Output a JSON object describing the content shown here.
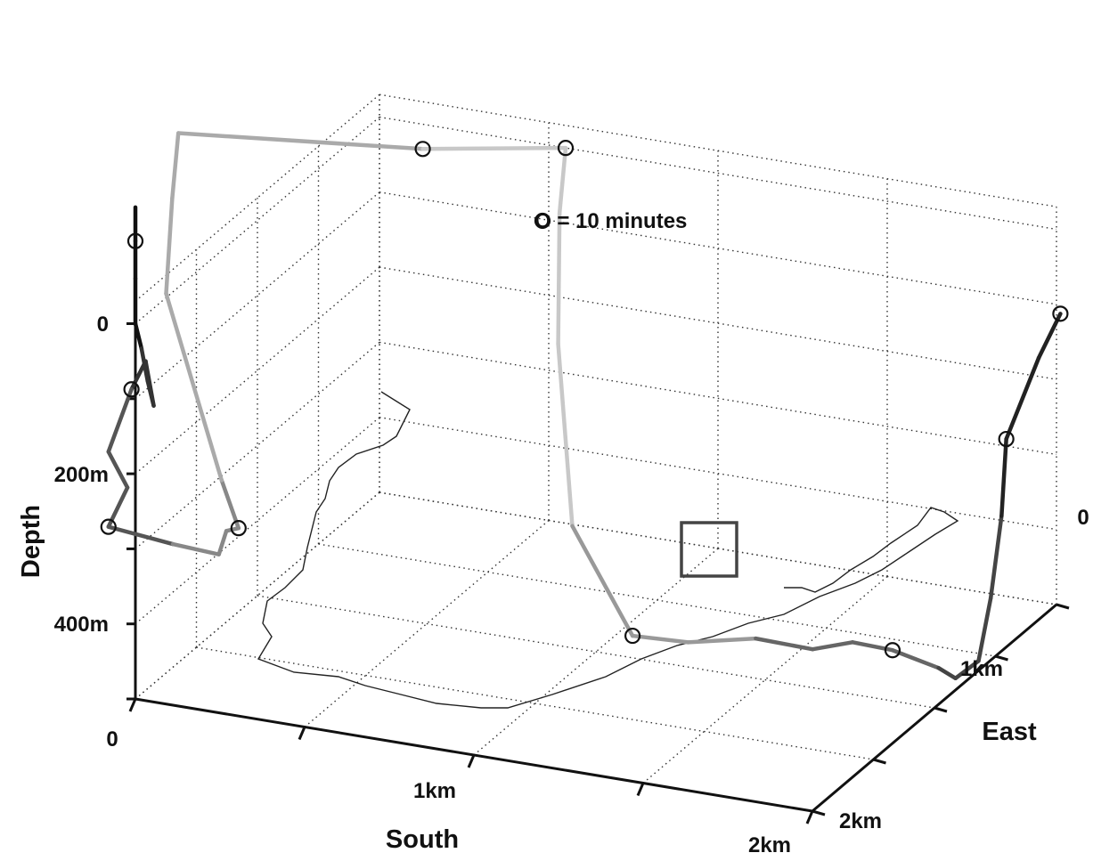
{
  "chart_data": {
    "type": "line",
    "title": "",
    "legend": {
      "text": "O = 10 minutes",
      "position": "top-center"
    },
    "axes": {
      "depth": {
        "label": "Depth",
        "ticks": [
          {
            "label": "0",
            "value": 0
          },
          {
            "label": "200m",
            "value": 200
          },
          {
            "label": "400m",
            "value": 400
          }
        ],
        "range": [
          0,
          500
        ],
        "reversed": true
      },
      "south": {
        "label": "South",
        "ticks": [
          {
            "label": "0",
            "value": 0
          },
          {
            "label": "1km",
            "value": 1
          },
          {
            "label": "2km",
            "value": 2
          }
        ],
        "range": [
          0,
          2
        ]
      },
      "east": {
        "label": "East",
        "ticks": [
          {
            "label": "0",
            "value": 0
          },
          {
            "label": "1km",
            "value": 1
          },
          {
            "label": "2km",
            "value": 2
          }
        ],
        "range": [
          0,
          2
        ]
      }
    },
    "grid": true,
    "series": [
      {
        "description": "dive track (south km, east km, depth m)",
        "points": [
          [
            0.0,
            0.0,
            -155
          ],
          [
            0.0,
            0.0,
            -110
          ],
          [
            0.0,
            0.0,
            -60
          ],
          [
            0.0,
            0.0,
            0
          ],
          [
            0.0,
            0.05,
            40
          ],
          [
            0.0,
            0.1,
            90
          ],
          [
            0.0,
            0.15,
            130
          ],
          [
            -0.15,
            0.5,
            130
          ],
          [
            -0.3,
            0.8,
            220
          ],
          [
            -0.35,
            0.75,
            300
          ],
          [
            -0.33,
            0.85,
            360
          ],
          [
            -0.35,
            0.75,
            400
          ],
          [
            -0.25,
            1.0,
            450
          ],
          [
            -0.15,
            1.1,
            470
          ],
          [
            -0.2,
            1.3,
            470
          ],
          [
            -0.2,
            1.4,
            480
          ],
          [
            -0.25,
            1.4,
            420
          ],
          [
            -0.45,
            1.5,
            200
          ],
          [
            -0.45,
            1.55,
            80
          ],
          [
            -0.45,
            1.6,
            0
          ],
          [
            0.2,
            1.8,
            0
          ],
          [
            0.55,
            2.0,
            0
          ],
          [
            0.55,
            1.95,
            80
          ],
          [
            0.6,
            1.8,
            230
          ],
          [
            0.75,
            1.5,
            420
          ],
          [
            1.0,
            1.3,
            520
          ],
          [
            1.2,
            1.2,
            500
          ],
          [
            1.3,
            1.2,
            490
          ],
          [
            1.4,
            1.2,
            480
          ],
          [
            1.55,
            1.25,
            490
          ],
          [
            1.65,
            1.3,
            480
          ],
          [
            1.75,
            1.35,
            490
          ],
          [
            1.85,
            1.45,
            520
          ],
          [
            1.9,
            1.45,
            530
          ],
          [
            1.95,
            1.5,
            510
          ],
          [
            1.95,
            1.6,
            440
          ],
          [
            2.0,
            1.55,
            320
          ],
          [
            2.05,
            1.45,
            200
          ],
          [
            2.2,
            1.3,
            60
          ],
          [
            2.3,
            1.2,
            -20
          ]
        ],
        "markers": [
          [
            0.0,
            0.0,
            -110
          ],
          [
            -0.3,
            0.8,
            220
          ],
          [
            -0.35,
            0.75,
            400
          ],
          [
            -0.2,
            1.4,
            480
          ],
          [
            0.2,
            1.8,
            0
          ],
          [
            0.55,
            2.0,
            0
          ],
          [
            1.0,
            1.3,
            520
          ],
          [
            1.75,
            1.35,
            490
          ],
          [
            2.05,
            1.45,
            200
          ],
          [
            2.3,
            1.2,
            -20
          ]
        ]
      }
    ],
    "annotations": [
      {
        "type": "box",
        "description": "highlighted region",
        "at": [
          1.4,
          1.2,
          480
        ]
      }
    ]
  }
}
